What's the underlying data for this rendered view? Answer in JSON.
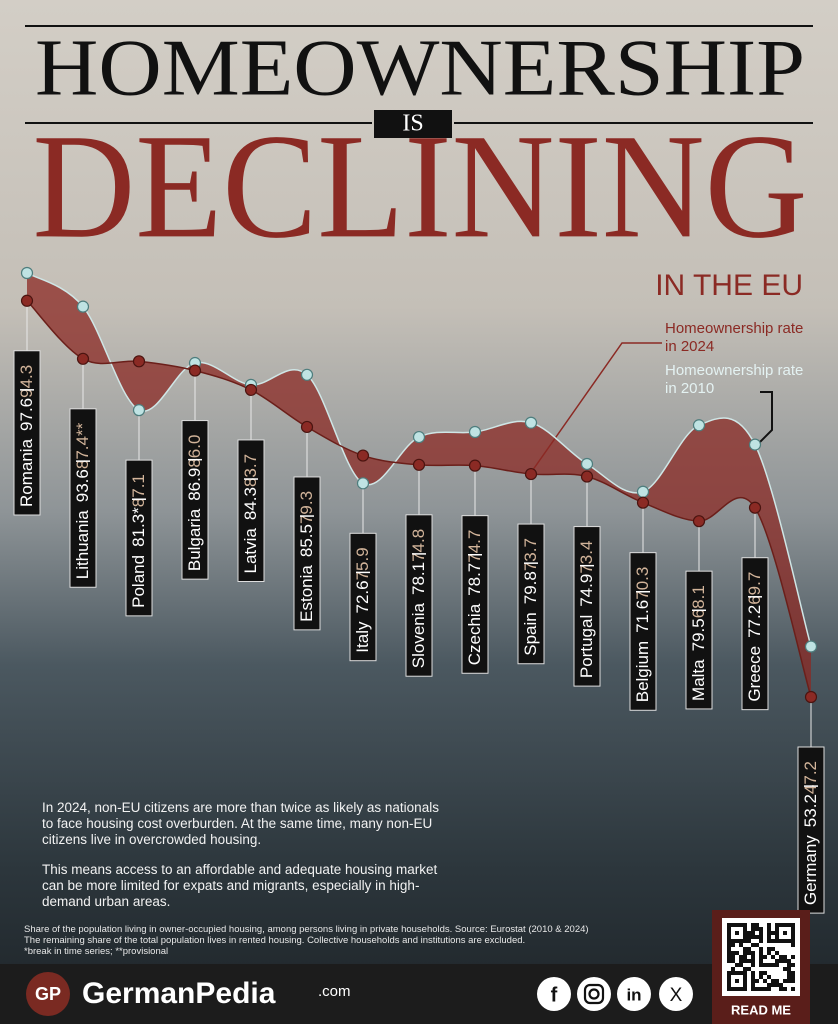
{
  "header": {
    "line1": "HOMEOWNERSHIP",
    "connector": "IS",
    "line2": "DECLINING",
    "subtitle": "IN THE EU"
  },
  "chart_data": {
    "type": "line",
    "categories": [
      "Romania",
      "Lithuania",
      "Poland",
      "Bulgaria",
      "Latvia",
      "Estonia",
      "Italy",
      "Slovenia",
      "Czechia",
      "Spain",
      "Portugal",
      "Belgium",
      "Malta",
      "Greece",
      "Germany"
    ],
    "series": [
      {
        "name": "Homeownership rate in 2010",
        "color": "#bfe3e3",
        "values": [
          97.6,
          93.6,
          81.3,
          86.9,
          84.3,
          85.5,
          72.6,
          78.1,
          78.7,
          79.8,
          74.9,
          71.6,
          79.5,
          77.2,
          53.2
        ],
        "value_labels": [
          "97.6",
          "93.6",
          "81.3*",
          "86.9",
          "84.3",
          "85.5",
          "72.6",
          "78.1",
          "78.7",
          "79.8",
          "74.9",
          "71.6",
          "79.5",
          "77.2",
          "53.2"
        ]
      },
      {
        "name": "Homeownership rate in 2024",
        "color": "#8b2a24",
        "values": [
          94.3,
          87.4,
          87.1,
          86.0,
          83.7,
          79.3,
          75.9,
          74.8,
          74.7,
          73.7,
          73.4,
          70.3,
          68.1,
          69.7,
          47.2
        ],
        "value_labels": [
          "94.3",
          "87.4**",
          "87.1",
          "86.0",
          "83.7",
          "79.3",
          "75.9",
          "74.8",
          "74.7",
          "73.7",
          "73.4",
          "70.3",
          "68.1",
          "69.7",
          "47.2"
        ]
      }
    ]
  },
  "notes": {
    "paragraphs": [
      "In 2024, non-EU citizens are more than twice as likely as nationals to face housing cost overburden. At the same time, many non-EU citizens live in overcrowded housing.",
      "This means access to an affordable and adequate housing market can be more limited for expats and migrants, especially in high-demand urban areas."
    ],
    "footnote": [
      "Share of the population living in owner-occupied housing, among persons living in private households. Source: Eurostat (2010 & 2024)",
      "The remaining share of the total population lives in rented housing. Collective households and institutions are excluded.",
      "*break in time series; **provisional"
    ]
  },
  "footer": {
    "logo": "GP",
    "brand": "GermanPedia",
    "domain": ".com",
    "social": [
      "f",
      "in",
      "X"
    ],
    "qr_caption": "READ ME"
  }
}
